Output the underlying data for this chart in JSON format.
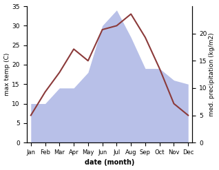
{
  "months": [
    "Jan",
    "Feb",
    "Mar",
    "Apr",
    "May",
    "Jun",
    "Jul",
    "Aug",
    "Sep",
    "Oct",
    "Nov",
    "Dec"
  ],
  "temp": [
    7,
    13,
    18,
    24,
    21,
    29,
    30,
    33,
    27,
    19,
    10,
    7
  ],
  "precip_left_scale": [
    10,
    10,
    14,
    14,
    18,
    30,
    34,
    27,
    19,
    19,
    16,
    15
  ],
  "temp_color": "#8b3a3a",
  "precip_fill_color": "#b8c0e8",
  "ylabel_left": "max temp (C)",
  "ylabel_right": "med. precipitation (kg/m2)",
  "xlabel": "date (month)",
  "ylim_left": [
    0,
    35
  ],
  "ylim_right": [
    0,
    25
  ],
  "yticks_left": [
    0,
    5,
    10,
    15,
    20,
    25,
    30,
    35
  ],
  "yticks_right": [
    0,
    5,
    10,
    15,
    20
  ],
  "bg_color": "#ffffff"
}
